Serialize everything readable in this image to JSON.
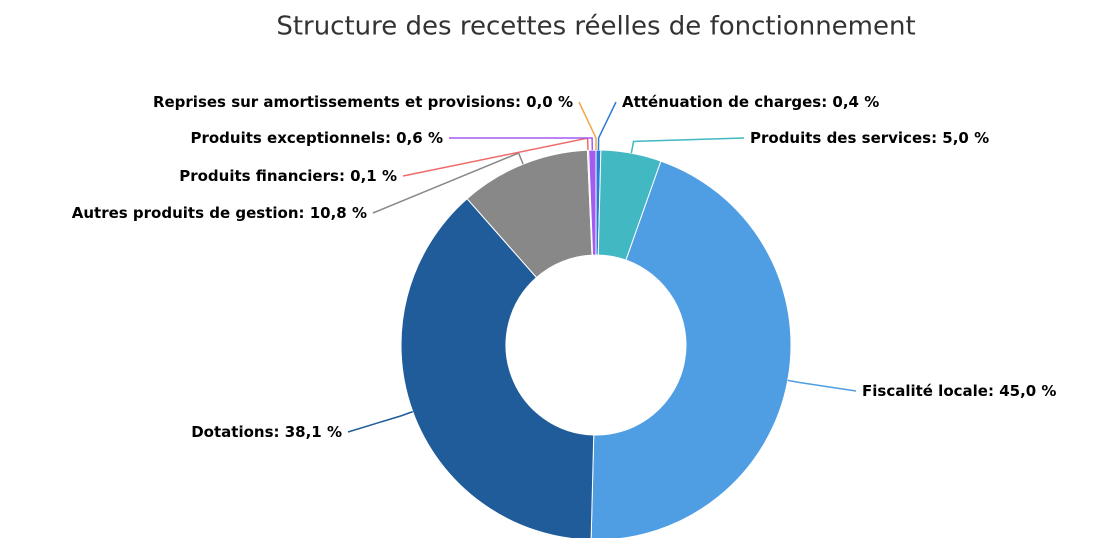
{
  "chart_data": {
    "type": "donut",
    "title": "Structure des recettes réelles de fonctionnement",
    "categories": [
      "Atténuation de charges",
      "Produits des services",
      "Fiscalité locale",
      "Dotations",
      "Autres produits de gestion",
      "Produits financiers",
      "Produits exceptionnels",
      "Reprises sur amortissements et provisions"
    ],
    "values": [
      0.4,
      5.0,
      45.0,
      38.1,
      10.8,
      0.1,
      0.6,
      0.0
    ],
    "value_labels": [
      "0,4 %",
      "5,0 %",
      "45,0 %",
      "38,1 %",
      "10,8 %",
      "0,1 %",
      "0,6 %",
      "0,0 %"
    ],
    "colors": [
      "#2b7bd6",
      "#41b8c2",
      "#4f9ee3",
      "#1f5c99",
      "#888888",
      "#f06a6a",
      "#a45cf0",
      "#f5a64a"
    ]
  }
}
